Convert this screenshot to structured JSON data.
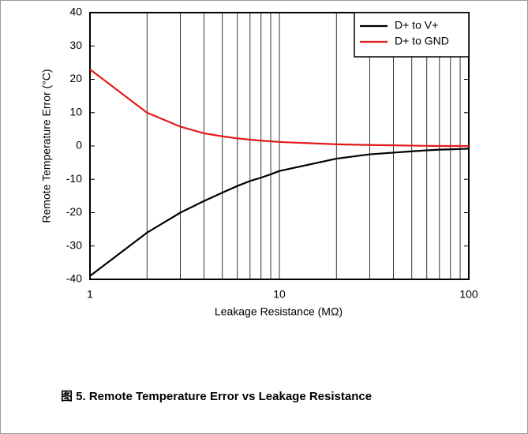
{
  "chart_data": {
    "type": "line",
    "xlabel": "Leakage Resistance (MΩ)",
    "ylabel": "Remote Temperature Error (°C)",
    "caption": "图 5. Remote Temperature Error vs Leakage Resistance",
    "x": [
      1,
      2,
      3,
      4,
      5,
      6,
      7,
      8,
      9,
      10,
      20,
      30,
      40,
      50,
      60,
      70,
      80,
      90,
      100
    ],
    "series": [
      {
        "name": "D+ to V+",
        "color": "#000000",
        "values": [
          -39,
          -26,
          -20,
          -16.5,
          -14,
          -12,
          -10.5,
          -9.5,
          -8.5,
          -7.5,
          -3.8,
          -2.5,
          -2,
          -1.6,
          -1.3,
          -1.1,
          -1,
          -0.9,
          -0.8
        ]
      },
      {
        "name": "D+ to GND",
        "color": "#e31a1c",
        "values": [
          23,
          10,
          5.8,
          3.8,
          2.9,
          2.3,
          1.9,
          1.6,
          1.4,
          1.2,
          0.5,
          0.3,
          0.2,
          0.1,
          0.05,
          0,
          0,
          0,
          0
        ]
      }
    ],
    "xscale": "log",
    "xlim": [
      1,
      100
    ],
    "xticks": [
      1,
      10,
      100
    ],
    "xgrid": [
      2,
      3,
      4,
      5,
      6,
      7,
      8,
      9,
      20,
      30,
      40,
      50,
      60,
      70,
      80,
      90
    ],
    "ylim": [
      -40,
      40
    ],
    "yticks": [
      -40,
      -30,
      -20,
      -10,
      0,
      10,
      20,
      30,
      40
    ],
    "legend": "upper right"
  }
}
